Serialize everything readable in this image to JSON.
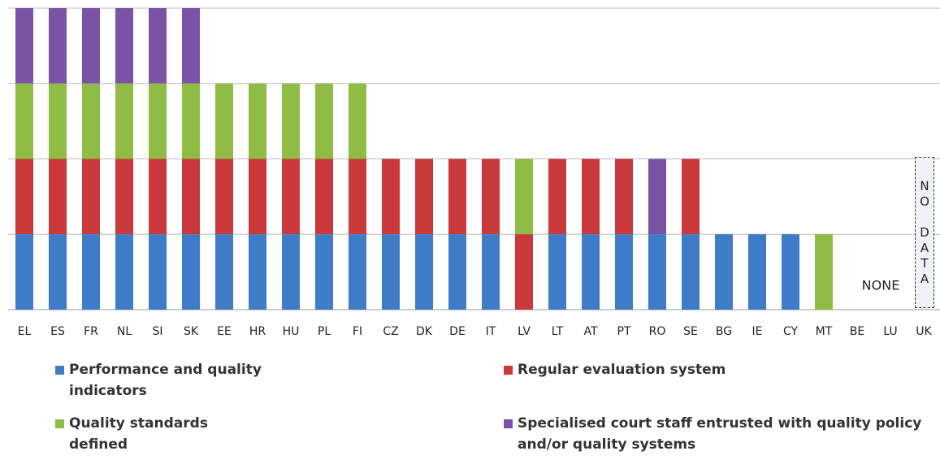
{
  "chart_data": {
    "type": "bar",
    "stacked": true,
    "categories": [
      "EL",
      "ES",
      "FR",
      "NL",
      "SI",
      "SK",
      "EE",
      "HR",
      "HU",
      "PL",
      "FI",
      "CZ",
      "DK",
      "DE",
      "IT",
      "LV",
      "LT",
      "AT",
      "PT",
      "RO",
      "SE",
      "BG",
      "IE",
      "CY",
      "MT",
      "BE",
      "LU",
      "UK"
    ],
    "series": [
      {
        "name": "Performance and quality indicators",
        "color": "#3f7cc8",
        "values": [
          1,
          1,
          1,
          1,
          1,
          1,
          1,
          1,
          1,
          1,
          1,
          1,
          1,
          1,
          1,
          0,
          1,
          1,
          1,
          1,
          1,
          1,
          1,
          1,
          0,
          0,
          0,
          0
        ]
      },
      {
        "name": "Regular evaluation system",
        "color": "#c9383a",
        "values": [
          1,
          1,
          1,
          1,
          1,
          1,
          1,
          1,
          1,
          1,
          1,
          1,
          1,
          1,
          1,
          1,
          1,
          1,
          1,
          0,
          1,
          0,
          0,
          0,
          0,
          0,
          0,
          0
        ]
      },
      {
        "name": "Quality standards defined",
        "color": "#8fbc45",
        "values": [
          1,
          1,
          1,
          1,
          1,
          1,
          1,
          1,
          1,
          1,
          1,
          0,
          0,
          0,
          0,
          1,
          0,
          0,
          0,
          0,
          0,
          0,
          0,
          0,
          1,
          0,
          0,
          0
        ]
      },
      {
        "name": "Specialised court staff entrusted with quality policy and/or quality systems",
        "color": "#7a53a6",
        "values": [
          1,
          1,
          1,
          1,
          1,
          1,
          0,
          0,
          0,
          0,
          0,
          0,
          0,
          0,
          0,
          0,
          0,
          0,
          0,
          1,
          0,
          0,
          0,
          0,
          0,
          0,
          0,
          0
        ]
      }
    ],
    "ylim": [
      0,
      4
    ],
    "yticks": [
      0,
      1,
      2,
      3,
      4
    ],
    "grid": true,
    "annotations": [
      "NONE",
      "NO DATA"
    ]
  }
}
